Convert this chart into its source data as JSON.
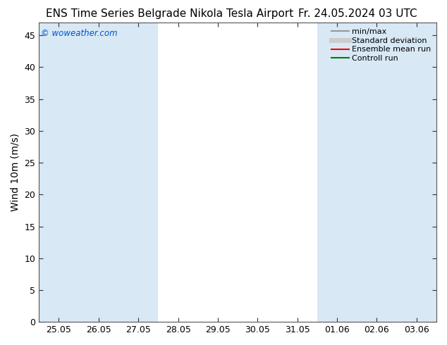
{
  "title_left": "ENS Time Series Belgrade Nikola Tesla Airport",
  "title_right": "Fr. 24.05.2024 03 UTC",
  "ylabel": "Wind 10m (m/s)",
  "watermark": "© woweather.com",
  "watermark_color": "#0055cc",
  "x_tick_labels": [
    "25.05",
    "26.05",
    "27.05",
    "28.05",
    "29.05",
    "30.05",
    "31.05",
    "01.06",
    "02.06",
    "03.06"
  ],
  "x_tick_positions": [
    0,
    1,
    2,
    3,
    4,
    5,
    6,
    7,
    8,
    9
  ],
  "ylim": [
    0,
    47
  ],
  "yticks": [
    0,
    5,
    10,
    15,
    20,
    25,
    30,
    35,
    40,
    45
  ],
  "bg_color": "#ffffff",
  "plot_bg_color": "#ffffff",
  "shaded_columns": [
    0,
    1,
    2,
    7,
    8,
    9
  ],
  "shaded_color": "#d8e8f5",
  "legend_entries": [
    {
      "label": "min/max",
      "color": "#999999",
      "lw": 1.5,
      "style": "-"
    },
    {
      "label": "Standard deviation",
      "color": "#cccccc",
      "lw": 5,
      "style": "-"
    },
    {
      "label": "Ensemble mean run",
      "color": "#ff0000",
      "lw": 1.5,
      "style": "-"
    },
    {
      "label": "Controll run",
      "color": "#008000",
      "lw": 1.5,
      "style": "-"
    }
  ],
  "title_fontsize": 11,
  "axis_label_fontsize": 10,
  "tick_fontsize": 9,
  "spine_color": "#555555",
  "tick_color": "#333333"
}
